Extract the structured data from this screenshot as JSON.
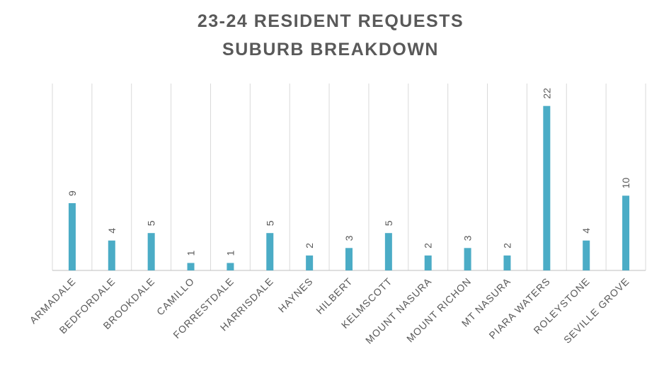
{
  "chart_data": {
    "type": "bar",
    "title": [
      "23-24 RESIDENT REQUESTS",
      "SUBURB BREAKDOWN"
    ],
    "categories": [
      "ARMADALE",
      "BEDFORDALE",
      "BROOKDALE",
      "CAMILLO",
      "FORRESTDALE",
      "HARRISDALE",
      "HAYNES",
      "HILBERT",
      "KELMSCOTT",
      "MOUNT NASURA",
      "MOUNT RICHON",
      "MT NASURA",
      "PIARA WATERS",
      "ROLEYSTONE",
      "SEVILLE GROVE"
    ],
    "values": [
      9,
      4,
      5,
      1,
      1,
      5,
      2,
      3,
      5,
      2,
      3,
      2,
      22,
      4,
      10
    ],
    "color": "#4bacc6",
    "ylim": [
      0,
      25
    ]
  }
}
